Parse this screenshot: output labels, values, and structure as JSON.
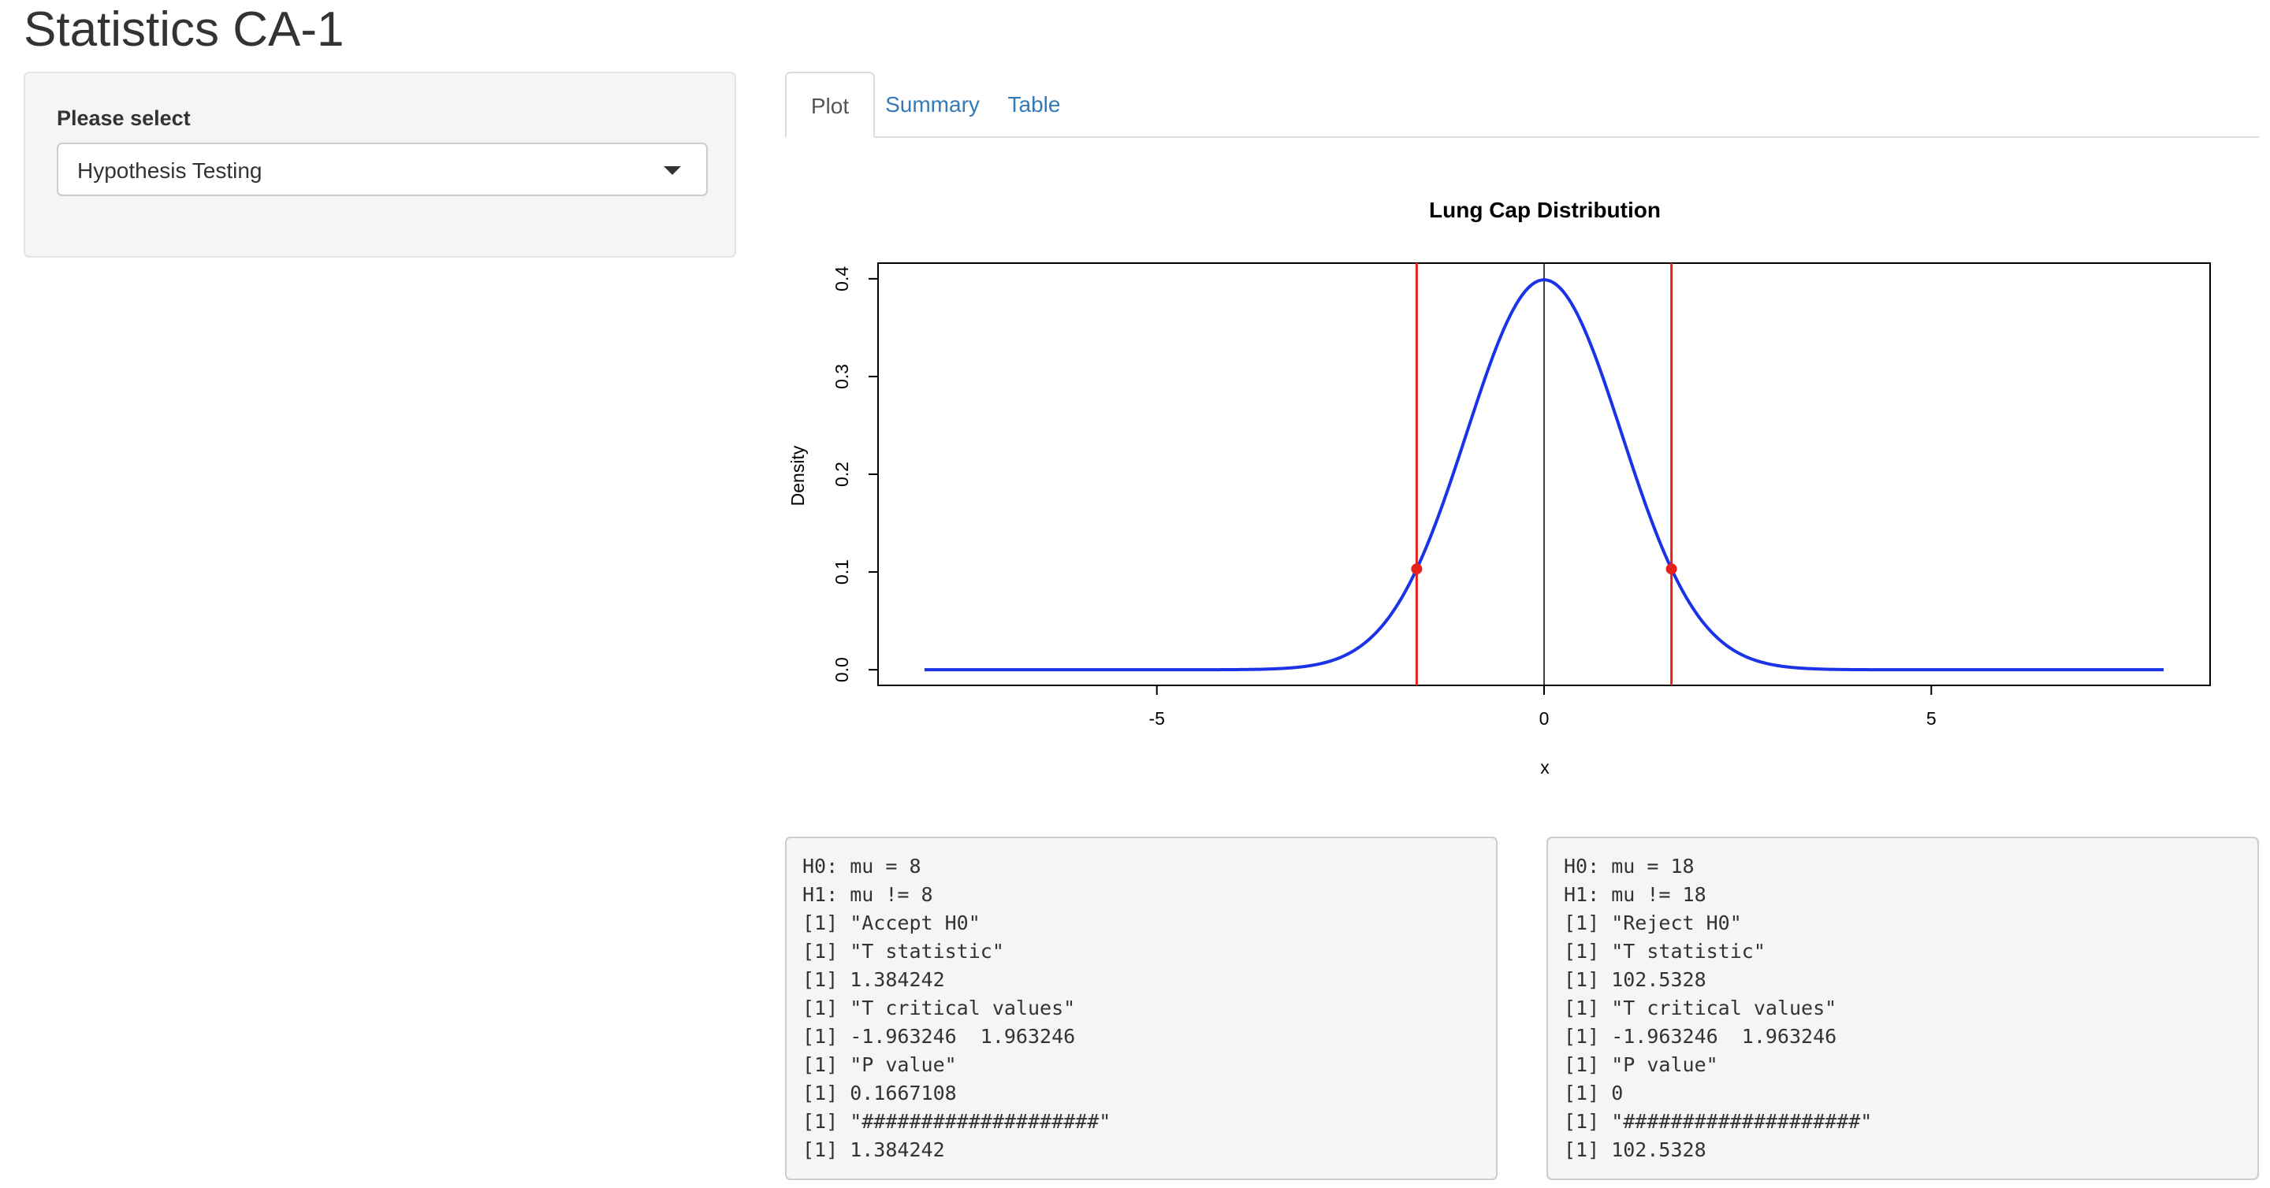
{
  "page": {
    "title": "Statistics CA-1"
  },
  "sidebar": {
    "select_label": "Please select",
    "selected_value": "Hypothesis Testing"
  },
  "tabs": [
    {
      "label": "Plot",
      "active": true
    },
    {
      "label": "Summary",
      "active": false
    },
    {
      "label": "Table",
      "active": false
    }
  ],
  "colors": {
    "curve": "#1a33e6",
    "critical_lines": "#e8201a",
    "link": "#337ab7"
  },
  "chart_data": {
    "type": "line",
    "title": "Lung Cap Distribution",
    "xlabel": "x",
    "ylabel": "Density",
    "xlim": [
      -8.6,
      8.6
    ],
    "ylim": [
      -0.016,
      0.416
    ],
    "x_ticks": [
      -5,
      0,
      5
    ],
    "y_ticks": [
      0.0,
      0.1,
      0.2,
      0.3,
      0.4
    ],
    "x_tick_labels": [
      "-5",
      "0",
      "5"
    ],
    "y_tick_labels": [
      "0.0",
      "0.1",
      "0.2",
      "0.3",
      "0.4"
    ],
    "series": [
      {
        "distribution": "standard normal density",
        "x_range": [
          -8,
          8
        ]
      }
    ],
    "center_line_x": 0,
    "critical_values": [
      -1.645,
      1.645
    ],
    "critical_points": [
      {
        "x": -1.645,
        "y": 0.1031
      },
      {
        "x": 1.645,
        "y": 0.1031
      }
    ],
    "grid": false,
    "legend": "none"
  },
  "outputs": [
    {
      "lines": [
        "H0: mu = 8",
        "H1: mu != 8",
        "[1] \"Accept H0\"",
        "[1] \"T statistic\"",
        "[1] 1.384242",
        "[1] \"T critical values\"",
        "[1] -1.963246  1.963246",
        "[1] \"P value\"",
        "[1] 0.1667108",
        "[1] \"####################\"",
        "[1] 1.384242"
      ]
    },
    {
      "lines": [
        "H0: mu = 18",
        "H1: mu != 18",
        "[1] \"Reject H0\"",
        "[1] \"T statistic\"",
        "[1] 102.5328",
        "[1] \"T critical values\"",
        "[1] -1.963246  1.963246",
        "[1] \"P value\"",
        "[1] 0",
        "[1] \"####################\"",
        "[1] 102.5328"
      ]
    }
  ]
}
